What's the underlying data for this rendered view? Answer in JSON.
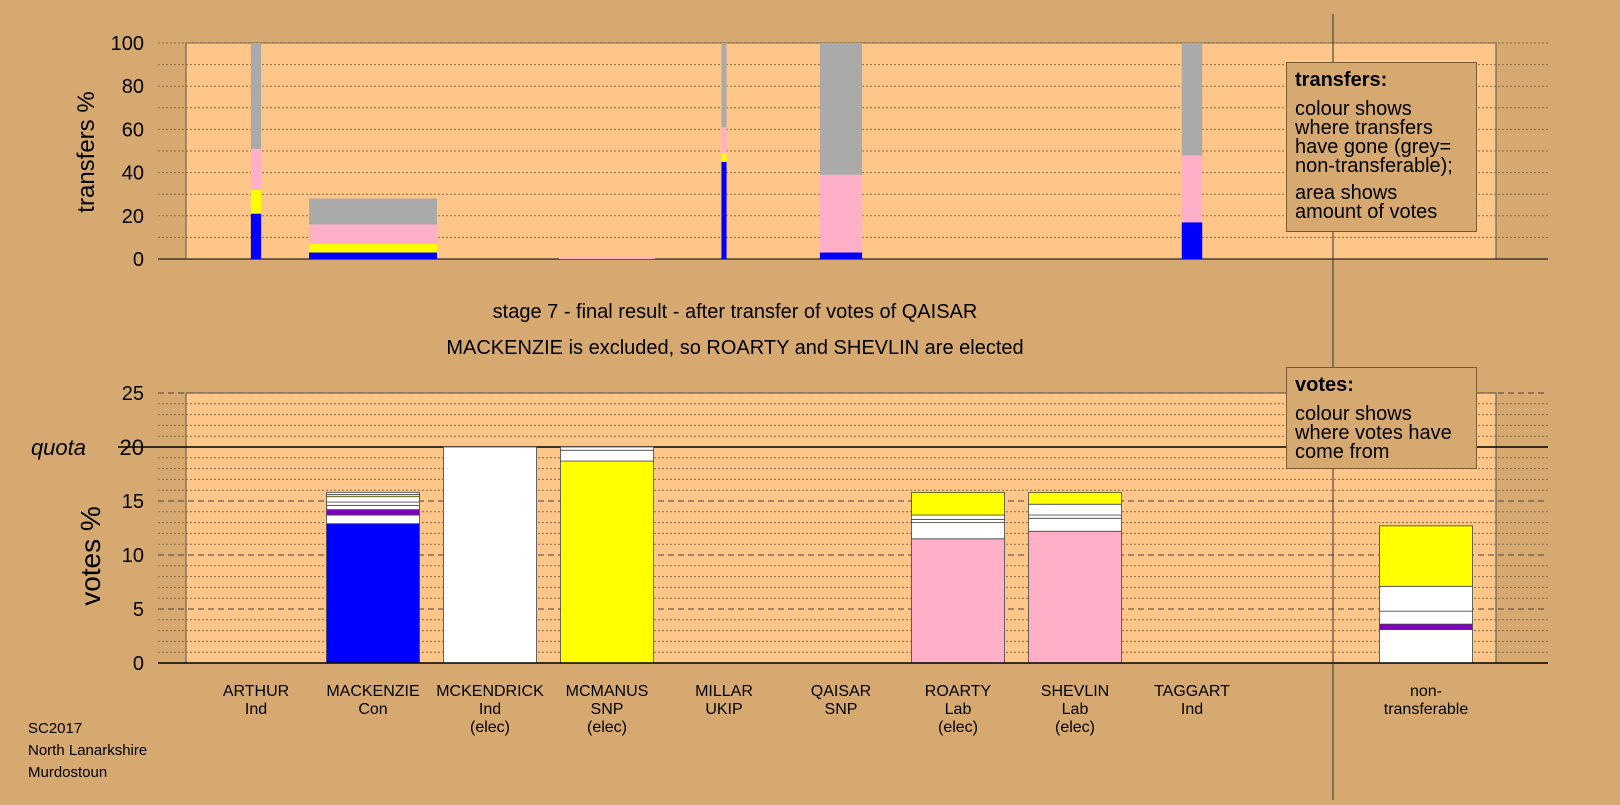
{
  "stage_title": "stage 7 - final result - after transfer of votes of QAISAR",
  "stage_subtitle": "MACKENZIE is excluded, so ROARTY and SHEVLIN are elected",
  "legend_transfers": {
    "title": "transfers:",
    "line1": "colour shows where transfers have gone (grey= non-transferable);",
    "line2": "area shows amount of votes"
  },
  "legend_votes": {
    "title": "votes:",
    "line1": "colour shows where votes have come from"
  },
  "footer": {
    "line1": "SC2017",
    "line2": "North Lanarkshire",
    "line3": "Murdostoun"
  },
  "colors": {
    "background": "#d6a970",
    "plot_background": "#ffc68a",
    "con": "#0000ff",
    "snp": "#ffff00",
    "lab": "#ffb0c8",
    "ind": "#ffffff",
    "other": "#8000c0",
    "nontransferable": "#aaaaaa"
  },
  "chart_data": [
    {
      "type": "bar",
      "title": "",
      "ylabel": "transfers %",
      "ylim": [
        0,
        100
      ],
      "yticks": [
        "0",
        "20",
        "40",
        "60",
        "80",
        "100"
      ],
      "grid": true,
      "categories": [
        "ARTHUR",
        "MACKENZIE",
        "MCKENDRICK",
        "MCMANUS",
        "MILLAR",
        "QAISAR",
        "ROARTY",
        "SHEVLIN",
        "TAGGART"
      ],
      "bars": [
        {
          "candidate": "ARTHUR",
          "width_share": 0.08,
          "segments": [
            {
              "color": "con",
              "value": 21
            },
            {
              "color": "snp",
              "value": 11
            },
            {
              "color": "lab",
              "value": 19
            },
            {
              "color": "nontransferable",
              "value": 49
            }
          ]
        },
        {
          "candidate": "MACKENZIE",
          "width_share": 1.0,
          "segments": [
            {
              "color": "con",
              "value": 3
            },
            {
              "color": "snp",
              "value": 4
            },
            {
              "color": "lab",
              "value": 9
            },
            {
              "color": "nontransferable",
              "value": 12
            }
          ]
        },
        {
          "candidate": "MCMANUS",
          "width_share": 0.75,
          "segments": [
            {
              "color": "lab",
              "value": 1
            }
          ]
        },
        {
          "candidate": "MILLAR",
          "width_share": 0.04,
          "segments": [
            {
              "color": "con",
              "value": 45
            },
            {
              "color": "snp",
              "value": 4
            },
            {
              "color": "lab",
              "value": 12
            },
            {
              "color": "nontransferable",
              "value": 39
            }
          ]
        },
        {
          "candidate": "QAISAR",
          "width_share": 0.33,
          "segments": [
            {
              "color": "con",
              "value": 3
            },
            {
              "color": "lab",
              "value": 36
            },
            {
              "color": "nontransferable",
              "value": 61
            }
          ]
        },
        {
          "candidate": "TAGGART",
          "width_share": 0.16,
          "segments": [
            {
              "color": "con",
              "value": 17
            },
            {
              "color": "lab",
              "value": 31
            },
            {
              "color": "nontransferable",
              "value": 52
            }
          ]
        }
      ]
    },
    {
      "type": "bar",
      "title": "",
      "ylabel": "votes %",
      "ylim": [
        0,
        25
      ],
      "yticks": [
        "0",
        "5",
        "10",
        "15",
        "20",
        "25"
      ],
      "quota": 20,
      "quota_label": "quota",
      "grid": true,
      "categories": [
        {
          "name": "ARTHUR",
          "party": "Ind",
          "status": ""
        },
        {
          "name": "MACKENZIE",
          "party": "Con",
          "status": ""
        },
        {
          "name": "MCKENDRICK",
          "party": "Ind",
          "status": "(elec)"
        },
        {
          "name": "MCMANUS",
          "party": "SNP",
          "status": "(elec)"
        },
        {
          "name": "MILLAR",
          "party": "UKIP",
          "status": ""
        },
        {
          "name": "QAISAR",
          "party": "SNP",
          "status": ""
        },
        {
          "name": "ROARTY",
          "party": "Lab",
          "status": "(elec)"
        },
        {
          "name": "SHEVLIN",
          "party": "Lab",
          "status": "(elec)"
        },
        {
          "name": "TAGGART",
          "party": "Ind",
          "status": ""
        },
        {
          "name": "non-",
          "party": "transferable",
          "status": ""
        }
      ],
      "series": [
        {
          "candidate": "ARTHUR",
          "segments": []
        },
        {
          "candidate": "MACKENZIE",
          "segments": [
            {
              "color": "con",
              "value": 12.9
            },
            {
              "color": "ind",
              "value": 0.8
            },
            {
              "color": "other",
              "value": 0.5
            },
            {
              "color": "ind",
              "value": 0.4
            },
            {
              "color": "ind",
              "value": 0.3
            },
            {
              "color": "ind",
              "value": 0.5
            },
            {
              "color": "snp",
              "value": 0.2
            },
            {
              "color": "ind",
              "value": 0.2
            }
          ]
        },
        {
          "candidate": "MCKENDRICK",
          "segments": [
            {
              "color": "ind",
              "value": 20.0
            }
          ]
        },
        {
          "candidate": "MCMANUS",
          "segments": [
            {
              "color": "snp",
              "value": 18.7
            },
            {
              "color": "ind",
              "value": 1.0
            },
            {
              "color": "ind",
              "value": 0.3
            }
          ]
        },
        {
          "candidate": "MILLAR",
          "segments": []
        },
        {
          "candidate": "QAISAR",
          "segments": []
        },
        {
          "candidate": "ROARTY",
          "segments": [
            {
              "color": "lab",
              "value": 11.5
            },
            {
              "color": "ind",
              "value": 1.5
            },
            {
              "color": "ind",
              "value": 0.3
            },
            {
              "color": "ind",
              "value": 0.4
            },
            {
              "color": "snp",
              "value": 2.1
            }
          ]
        },
        {
          "candidate": "SHEVLIN",
          "segments": [
            {
              "color": "lab",
              "value": 12.2
            },
            {
              "color": "ind",
              "value": 1.2
            },
            {
              "color": "ind",
              "value": 0.3
            },
            {
              "color": "ind",
              "value": 1.0
            },
            {
              "color": "snp",
              "value": 1.1
            }
          ]
        },
        {
          "candidate": "TAGGART",
          "segments": []
        },
        {
          "candidate": "non-transferable",
          "segments": [
            {
              "color": "ind",
              "value": 3.1
            },
            {
              "color": "other",
              "value": 0.5
            },
            {
              "color": "ind",
              "value": 1.2
            },
            {
              "color": "ind",
              "value": 2.3
            },
            {
              "color": "snp",
              "value": 5.6
            }
          ]
        }
      ]
    }
  ]
}
